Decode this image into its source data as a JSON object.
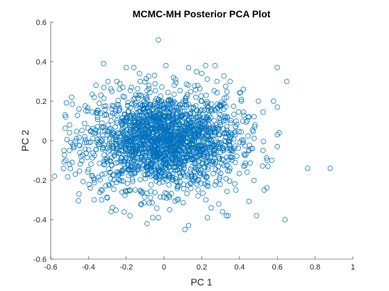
{
  "chart_data": {
    "type": "scatter",
    "title": "MCMC-MH Posterior PCA Plot",
    "xlabel": "PC 1",
    "ylabel": "PC 2",
    "xlim": [
      -0.6,
      1.0
    ],
    "ylim": [
      -0.6,
      0.6
    ],
    "xticks": [
      "-0.6",
      "-0.4",
      "-0.2",
      "0",
      "0.2",
      "0.4",
      "0.6",
      "0.8",
      "1"
    ],
    "yticks": [
      "-0.6",
      "-0.4",
      "-0.2",
      "0",
      "0.2",
      "0.4",
      "0.6"
    ],
    "marker": "circle-open",
    "box": "left-bottom",
    "grid": false,
    "series": [
      {
        "color": "#0072BD",
        "points": [
          [
            -0.03,
            0.51
          ],
          [
            0.01,
            0.38
          ],
          [
            -0.32,
            0.39
          ],
          [
            -0.2,
            0.37
          ],
          [
            -0.16,
            0.37
          ],
          [
            0.13,
            0.37
          ],
          [
            0.22,
            0.38
          ],
          [
            0.27,
            0.38
          ],
          [
            0.6,
            0.37
          ],
          [
            0.65,
            0.3
          ],
          [
            -0.13,
            0.34
          ],
          [
            -0.05,
            0.33
          ],
          [
            0.2,
            0.34
          ],
          [
            0.35,
            0.3
          ],
          [
            0.42,
            0.26
          ],
          [
            -0.36,
            0.28
          ],
          [
            -0.37,
            0.22
          ],
          [
            0.5,
            0.2
          ],
          [
            0.58,
            0.2
          ],
          [
            0.6,
            0.17
          ],
          [
            0.6,
            0.03
          ],
          [
            0.61,
            0.04
          ],
          [
            0.6,
            -0.03
          ],
          [
            -0.52,
            0.12
          ],
          [
            -0.45,
            0.16
          ],
          [
            -0.5,
            0.08
          ],
          [
            -0.5,
            0.04
          ],
          [
            -0.53,
            -0.05
          ],
          [
            -0.5,
            -0.05
          ],
          [
            -0.58,
            -0.18
          ],
          [
            -0.52,
            -0.1
          ],
          [
            -0.5,
            -0.12
          ],
          [
            -0.47,
            -0.17
          ],
          [
            -0.45,
            -0.27
          ],
          [
            -0.39,
            -0.24
          ],
          [
            -0.37,
            -0.2
          ],
          [
            -0.33,
            -0.3
          ],
          [
            -0.3,
            -0.29
          ],
          [
            -0.37,
            -0.3
          ],
          [
            -0.18,
            -0.38
          ],
          [
            -0.06,
            -0.39
          ],
          [
            -0.03,
            -0.39
          ],
          [
            -0.09,
            -0.42
          ],
          [
            0.03,
            -0.35
          ],
          [
            0.11,
            -0.45
          ],
          [
            0.13,
            -0.43
          ],
          [
            0.23,
            -0.39
          ],
          [
            0.25,
            -0.34
          ],
          [
            0.31,
            -0.36
          ],
          [
            0.33,
            -0.38
          ],
          [
            0.34,
            -0.38
          ],
          [
            0.49,
            -0.38
          ],
          [
            0.53,
            -0.25
          ],
          [
            0.55,
            -0.13
          ],
          [
            0.57,
            -0.1
          ],
          [
            0.64,
            -0.4
          ],
          [
            0.76,
            -0.14
          ],
          [
            0.88,
            -0.14
          ],
          [
            0.45,
            0.12
          ],
          [
            0.48,
            0.07
          ],
          [
            0.46,
            -0.04
          ],
          [
            0.44,
            -0.16
          ],
          [
            0.38,
            -0.25
          ],
          [
            -0.28,
            -0.36
          ],
          [
            -0.12,
            -0.32
          ],
          [
            0.07,
            -0.3
          ],
          [
            0.18,
            -0.28
          ],
          [
            0.28,
            0.3
          ],
          [
            -0.25,
            0.3
          ],
          [
            0.05,
            0.32
          ],
          [
            0.29,
            -0.32
          ],
          [
            -0.08,
            0.28
          ],
          [
            0.41,
            0.2
          ],
          [
            -0.42,
            0.02
          ],
          [
            -0.44,
            -0.08
          ]
        ]
      }
    ],
    "core_cloud": {
      "points": 2000,
      "center": [
        0.0,
        0.0
      ],
      "spread": [
        0.2,
        0.12
      ],
      "extent": [
        [
          -0.55,
          0.55
        ],
        [
          -0.37,
          0.37
        ]
      ]
    }
  }
}
